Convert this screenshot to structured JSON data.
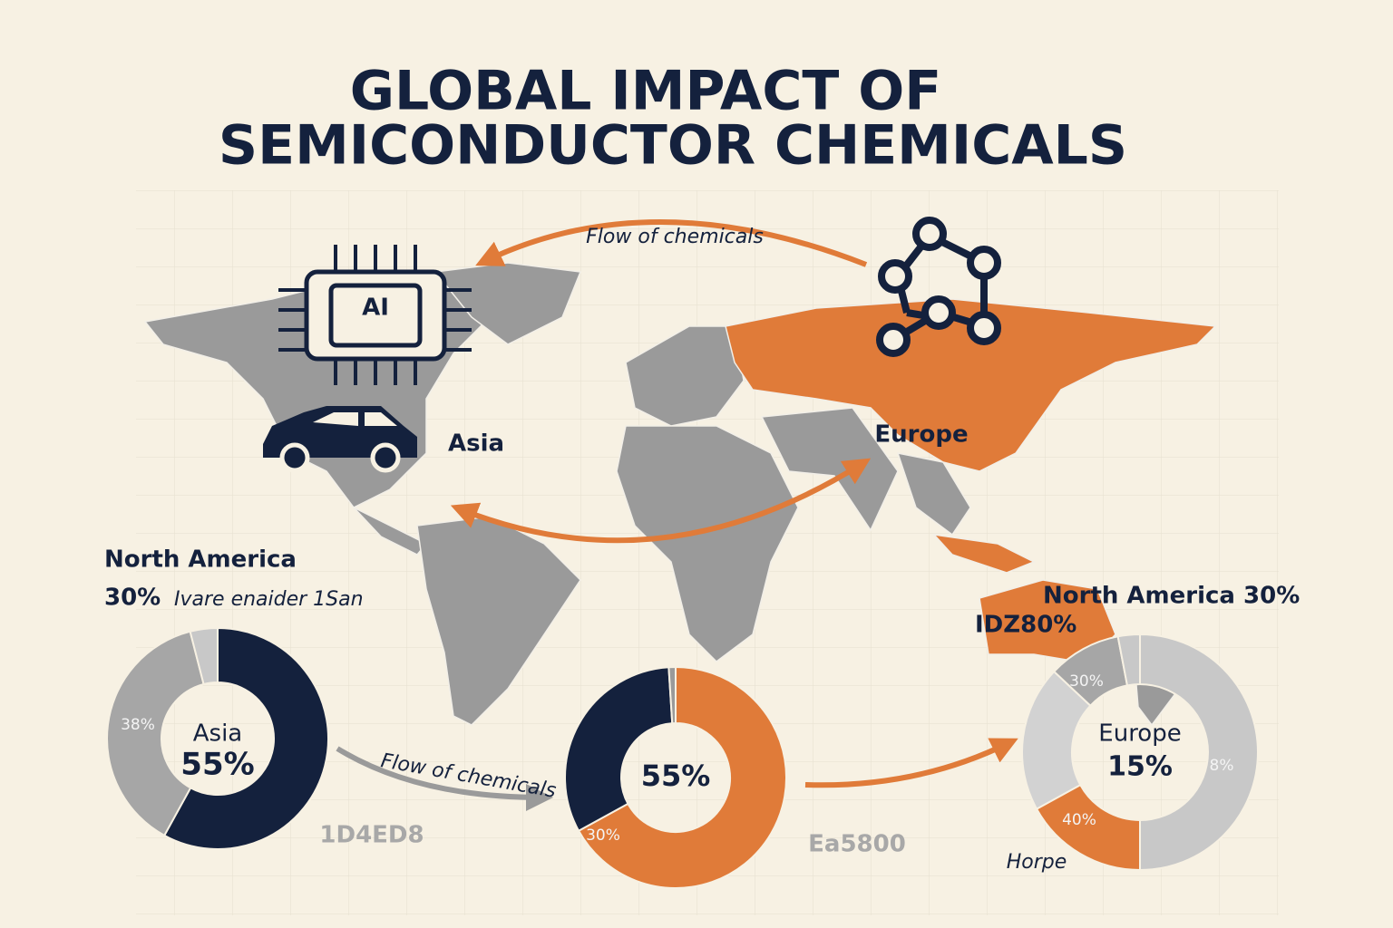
{
  "title": [
    "GLOBAL IMPACT OF",
    "SEMICONDUCTOR CHEMICALS"
  ],
  "map_labels": {
    "ai": "AI",
    "flow_top": "Flow of chemicals",
    "asia": "Asia",
    "europe": "Europe",
    "north_america": "North America",
    "na_share": "30%",
    "na_note": "Ivare enaider 1San",
    "north_america_right": "North America  30%",
    "idz": "IDZ80%",
    "flow_bottom": "Flow of chemicals",
    "code_left": "1D4ED8",
    "code_right": "Ea5800",
    "horpe": "Horpe"
  },
  "chart_data": [
    {
      "type": "donut",
      "center_labels": [
        "Asia",
        "55%"
      ],
      "values": [
        58,
        38,
        4
      ],
      "colors": [
        "#14213d",
        "#a6a6a6",
        "#c8c8c8"
      ],
      "annotations": [
        "38%"
      ]
    },
    {
      "type": "donut",
      "center_labels": [
        "55%"
      ],
      "values": [
        67,
        32,
        1
      ],
      "colors": [
        "#e07b39",
        "#14213d",
        "#9a9a9a"
      ],
      "annotations": [
        "30%"
      ]
    },
    {
      "type": "donut",
      "center_labels": [
        "Europe",
        "15%"
      ],
      "values": [
        50,
        17,
        20,
        10,
        3
      ],
      "colors": [
        "#c8c8c8",
        "#e07b39",
        "#d2d2d2",
        "#a6a6a6",
        "#c8c8c8"
      ],
      "annotations": [
        "30%",
        "40%",
        "8%"
      ]
    }
  ]
}
